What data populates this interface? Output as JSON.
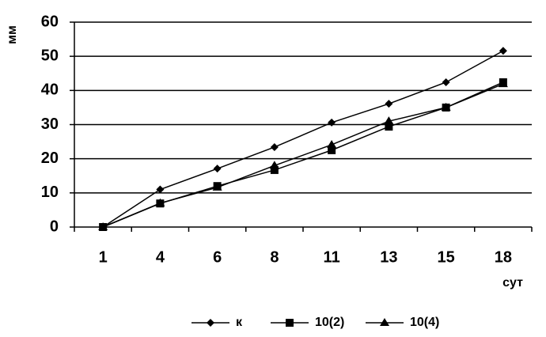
{
  "chart_data": {
    "type": "line",
    "y_label": "мм",
    "x_label": "сут",
    "categories": [
      "1",
      "4",
      "6",
      "8",
      "11",
      "13",
      "15",
      "18"
    ],
    "series": [
      {
        "name": "к",
        "color": "#000000",
        "marker": "diamond",
        "values": [
          0,
          11,
          17.1,
          23.4,
          30.6,
          36.1,
          42.4,
          51.6
        ]
      },
      {
        "name": "10(2)",
        "color": "#000000",
        "marker": "square",
        "values": [
          0,
          6.9,
          12,
          16.7,
          22.5,
          29.4,
          35,
          42.4
        ]
      },
      {
        "name": "10(4)",
        "color": "#000000",
        "marker": "triangle",
        "values": [
          0,
          7,
          11.6,
          18,
          24.1,
          31,
          35,
          41.9
        ]
      }
    ],
    "ylim": [
      0,
      60
    ],
    "yticks": [
      0,
      10,
      20,
      30,
      40,
      50,
      60
    ],
    "grid": true,
    "legend": "bottom"
  }
}
